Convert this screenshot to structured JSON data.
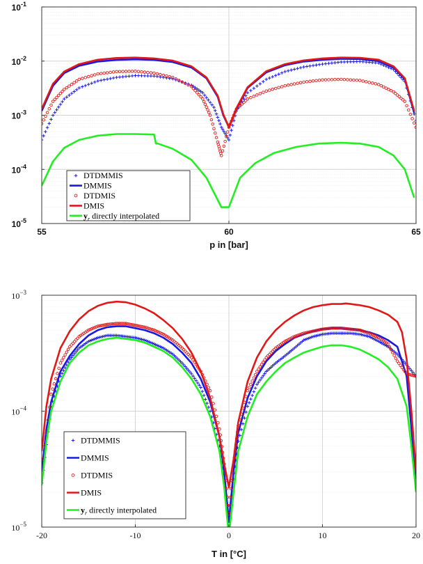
{
  "chart_data": [
    {
      "type": "line",
      "xlabel": "p in [bar]",
      "ylabel": "",
      "xlim": [
        55,
        65
      ],
      "ylim": [
        1e-05,
        0.1
      ],
      "yscale": "log",
      "grid": true,
      "legend_position": "bottom-left",
      "x_ticks": [
        "55",
        "60",
        "65"
      ],
      "y_tick_labels": [
        {
          "base": "10",
          "exp": "-5"
        },
        {
          "base": "10",
          "exp": "-4"
        },
        {
          "base": "10",
          "exp": "-3"
        },
        {
          "base": "10",
          "exp": "-2"
        },
        {
          "base": "10",
          "exp": "-1"
        }
      ],
      "series": [
        {
          "name": "DTDMMIS",
          "marker": "plus",
          "color": "#1a1adc",
          "x": [
            55.0,
            55.3,
            55.6,
            56.0,
            56.5,
            57.0,
            57.5,
            58.0,
            58.5,
            59.0,
            59.3,
            59.6,
            59.8,
            60.0,
            60.2,
            60.5,
            61.0,
            61.5,
            62.0,
            62.5,
            63.0,
            63.5,
            64.0,
            64.4,
            64.7,
            65.0
          ],
          "y": [
            0.00035,
            0.001,
            0.002,
            0.0032,
            0.0043,
            0.005,
            0.0054,
            0.0053,
            0.0047,
            0.0036,
            0.0026,
            0.0014,
            0.0006,
            0.00035,
            0.0012,
            0.0026,
            0.0046,
            0.0064,
            0.0078,
            0.0088,
            0.0096,
            0.0098,
            0.0092,
            0.007,
            0.0042,
            0.0008
          ]
        },
        {
          "name": "DMMIS",
          "marker": "line",
          "color": "#1a1adc",
          "x": [
            55.0,
            55.3,
            55.6,
            56.0,
            56.5,
            57.0,
            57.5,
            58.0,
            58.5,
            59.0,
            59.4,
            59.7,
            59.85,
            60.0,
            60.2,
            60.5,
            61.0,
            61.5,
            62.0,
            62.5,
            63.0,
            63.5,
            64.0,
            64.4,
            64.7,
            64.95
          ],
          "y": [
            0.0012,
            0.0035,
            0.006,
            0.0082,
            0.0098,
            0.0105,
            0.0108,
            0.0105,
            0.0096,
            0.0076,
            0.0048,
            0.0022,
            0.001,
            0.0006,
            0.0013,
            0.0032,
            0.0062,
            0.0084,
            0.0098,
            0.0106,
            0.011,
            0.0109,
            0.01,
            0.0076,
            0.0046,
            0.0011
          ]
        },
        {
          "name": "DTDMIS",
          "marker": "circle",
          "color": "#e01818",
          "x": [
            55.0,
            55.3,
            55.6,
            56.0,
            56.5,
            57.0,
            57.5,
            58.0,
            58.5,
            59.0,
            59.3,
            59.5,
            59.7,
            59.8,
            60.0,
            60.2,
            60.5,
            61.0,
            61.5,
            62.0,
            62.5,
            63.0,
            63.5,
            64.0,
            64.4,
            64.7,
            65.0
          ],
          "y": [
            0.0007,
            0.0018,
            0.003,
            0.0046,
            0.0058,
            0.0064,
            0.0065,
            0.006,
            0.005,
            0.0034,
            0.002,
            0.001,
            0.00032,
            0.00018,
            0.0006,
            0.0013,
            0.002,
            0.0028,
            0.0035,
            0.0041,
            0.0045,
            0.0046,
            0.0044,
            0.0037,
            0.0027,
            0.0018,
            0.0006
          ]
        },
        {
          "name": "DMIS",
          "marker": "line",
          "color": "#e01818",
          "x": [
            55.0,
            55.3,
            55.6,
            56.0,
            56.5,
            57.0,
            57.5,
            58.0,
            58.5,
            59.0,
            59.4,
            59.7,
            59.85,
            60.0,
            60.2,
            60.5,
            61.0,
            61.5,
            62.0,
            62.5,
            63.0,
            63.5,
            64.0,
            64.4,
            64.7,
            64.95
          ],
          "y": [
            0.0013,
            0.0038,
            0.0064,
            0.0088,
            0.0106,
            0.0114,
            0.0116,
            0.0112,
            0.0102,
            0.008,
            0.005,
            0.0023,
            0.00105,
            0.0006,
            0.00135,
            0.0033,
            0.0065,
            0.0088,
            0.0103,
            0.0112,
            0.0116,
            0.0115,
            0.0106,
            0.008,
            0.0048,
            0.0012
          ]
        },
        {
          "name": "y_r directly interpolated",
          "marker": "line",
          "color": "#22ee22",
          "x": [
            55.0,
            55.3,
            55.6,
            56.0,
            56.5,
            57.0,
            57.5,
            58.0,
            58.05,
            58.1,
            58.5,
            59.0,
            59.4,
            59.8,
            60.0,
            60.3,
            60.7,
            61.2,
            61.8,
            62.4,
            63.0,
            63.5,
            64.0,
            64.4,
            64.7,
            64.95
          ],
          "y": [
            5e-05,
            0.00014,
            0.00025,
            0.00035,
            0.00042,
            0.00045,
            0.00045,
            0.00044,
            0.0003,
            0.0003,
            0.00024,
            0.00015,
            7e-05,
            2e-05,
            2e-05,
            7e-05,
            0.00013,
            0.0002,
            0.00026,
            0.0003,
            0.00031,
            0.0003,
            0.00026,
            0.00018,
            0.0001,
            3e-05
          ]
        }
      ],
      "legend": [
        {
          "label": "DTDMMIS"
        },
        {
          "label": "DMMIS"
        },
        {
          "label": "DTDMIS"
        },
        {
          "label": "DMIS"
        },
        {
          "sym": "y",
          "sub": "r",
          "rest": " directly interpolated"
        }
      ]
    },
    {
      "type": "line",
      "xlabel": "T in [°C]",
      "ylabel": "",
      "xlim": [
        -20,
        20
      ],
      "ylim": [
        1e-05,
        0.001
      ],
      "yscale": "log",
      "grid": true,
      "legend_position": "bottom-left",
      "x_ticks": [
        "-20",
        "-10",
        "0",
        "10",
        "20"
      ],
      "y_tick_labels": [
        {
          "base": "10",
          "exp": "−5"
        },
        {
          "base": "10",
          "exp": "−4"
        },
        {
          "base": "10",
          "exp": "−3"
        }
      ],
      "series": [
        {
          "name": "DTDMMIS",
          "marker": "plus",
          "color": "#1a1adc",
          "x": [
            -20,
            -19,
            -18,
            -17,
            -16,
            -15,
            -14,
            -13,
            -12,
            -11,
            -10,
            -9,
            -8,
            -7,
            -6,
            -5,
            -4,
            -3,
            -2,
            -1,
            -0.5,
            0,
            0.5,
            1,
            2,
            3,
            4,
            5,
            6,
            7,
            8,
            9,
            10,
            11,
            12,
            13,
            14,
            15,
            16,
            17,
            18,
            19,
            20
          ],
          "y": [
            2.4e-05,
            0.00011,
            0.0002,
            0.00028,
            0.00035,
            0.0004,
            0.00043,
            0.00045,
            0.00045,
            0.00044,
            0.00043,
            0.00041,
            0.00038,
            0.00035,
            0.00031,
            0.00026,
            0.00021,
            0.00016,
            0.0001,
            5e-05,
            2.6e-05,
            1e-05,
            2.6e-05,
            5.5e-05,
            0.00011,
            0.00017,
            0.00022,
            0.00026,
            0.0003,
            0.00035,
            0.00041,
            0.00044,
            0.00046,
            0.00047,
            0.00047,
            0.00047,
            0.00046,
            0.00044,
            0.0004,
            0.00036,
            0.00031,
            0.00025,
            0.0002
          ]
        },
        {
          "name": "DMMIS",
          "marker": "line",
          "color": "#1a1adc",
          "x": [
            -20,
            -19.5,
            -19,
            -18,
            -17,
            -16,
            -15,
            -14,
            -13,
            -12,
            -11,
            -10,
            -9,
            -8,
            -7,
            -6,
            -5,
            -4,
            -3,
            -2,
            -1,
            -0.5,
            0,
            0.5,
            1,
            2,
            3,
            4,
            5,
            6,
            7,
            8,
            9,
            10,
            11,
            12,
            13,
            14,
            15,
            16,
            17,
            18,
            19,
            20
          ],
          "y": [
            3e-05,
            7e-05,
            0.00012,
            0.00022,
            0.0003,
            0.00038,
            0.00045,
            0.0005,
            0.00053,
            0.00054,
            0.00054,
            0.00052,
            0.0005,
            0.00047,
            0.00043,
            0.00038,
            0.00032,
            0.00026,
            0.00019,
            0.00012,
            6e-05,
            3e-05,
            1.1e-05,
            3e-05,
            6.5e-05,
            0.00013,
            0.0002,
            0.00027,
            0.00033,
            0.00038,
            0.00043,
            0.00046,
            0.00049,
            0.00051,
            0.00052,
            0.00052,
            0.00051,
            0.0005,
            0.00048,
            0.00045,
            0.00041,
            0.00036,
            0.0002,
            2.6e-05
          ]
        },
        {
          "name": "DTDMIS",
          "marker": "circle",
          "color": "#e01818",
          "x": [
            -20,
            -19,
            -18,
            -17,
            -16,
            -15,
            -14,
            -13,
            -12,
            -11,
            -10,
            -9,
            -8,
            -7,
            -6,
            -5,
            -4,
            -3,
            -2,
            -1,
            -0.5,
            0,
            0.5,
            1,
            2,
            3,
            4,
            5,
            6,
            7,
            8,
            9,
            10,
            11,
            12,
            13,
            14,
            15,
            16,
            17,
            18,
            19,
            20
          ],
          "y": [
            3e-05,
            0.00014,
            0.00026,
            0.00036,
            0.00044,
            0.0005,
            0.00054,
            0.00056,
            0.00057,
            0.00057,
            0.00055,
            0.00053,
            0.0005,
            0.00046,
            0.00041,
            0.00035,
            0.00029,
            0.00022,
            0.00015,
            7e-05,
            3.5e-05,
            1.3e-05,
            3.5e-05,
            7.5e-05,
            0.00015,
            0.00022,
            0.00029,
            0.00035,
            0.0004,
            0.00044,
            0.00047,
            0.00049,
            0.00051,
            0.00052,
            0.00052,
            0.00051,
            0.0005,
            0.00047,
            0.00043,
            0.00038,
            0.00027,
            0.00021,
            0.0002
          ]
        },
        {
          "name": "DMIS",
          "marker": "line",
          "color": "#e01818",
          "x": [
            -20,
            -19.5,
            -19,
            -18,
            -17,
            -16,
            -15,
            -14,
            -13,
            -12,
            -11,
            -10,
            -9,
            -8,
            -7,
            -6,
            -5,
            -4,
            -3,
            -2,
            -1,
            -0.5,
            0,
            0.5,
            1,
            2,
            3,
            4,
            5,
            6,
            7,
            8,
            9,
            10,
            11,
            12,
            12.5,
            13,
            14,
            15,
            16,
            17,
            18,
            18.5,
            19,
            19.5,
            20
          ],
          "y": [
            4.5e-05,
            0.00011,
            0.00019,
            0.00035,
            0.00049,
            0.00062,
            0.00073,
            0.00081,
            0.00086,
            0.00088,
            0.00087,
            0.00083,
            0.00077,
            0.0007,
            0.00061,
            0.00052,
            0.00042,
            0.00032,
            0.00022,
            0.00013,
            6e-05,
            3.5e-05,
            2.2e-05,
            3.8e-05,
            8e-05,
            0.00018,
            0.00029,
            0.0004,
            0.0005,
            0.00059,
            0.00067,
            0.00074,
            0.00079,
            0.00082,
            0.00084,
            0.00084,
            0.00085,
            0.00084,
            0.00082,
            0.00079,
            0.00074,
            0.00068,
            0.00059,
            0.00048,
            0.00028,
            0.0001,
            3e-05
          ]
        },
        {
          "name": "y_r directly interpolated",
          "marker": "line",
          "color": "#22ee22",
          "x": [
            -20,
            -19.5,
            -19,
            -18,
            -17,
            -16,
            -15,
            -14,
            -13,
            -12,
            -11,
            -10,
            -9,
            -8,
            -7,
            -6,
            -5,
            -4,
            -3,
            -2,
            -1,
            -0.5,
            -0.1,
            0.1,
            0.5,
            1,
            2,
            3,
            4,
            5,
            6,
            7,
            8,
            9,
            10,
            11,
            12,
            13,
            14,
            15,
            16,
            17,
            18,
            19,
            19.5,
            20
          ],
          "y": [
            2.3e-05,
            5.5e-05,
            0.0001,
            0.00018,
            0.00026,
            0.00032,
            0.00037,
            0.0004,
            0.00042,
            0.00043,
            0.00042,
            0.00041,
            0.00039,
            0.00036,
            0.00033,
            0.00029,
            0.00024,
            0.00019,
            0.00014,
            9e-05,
            4.5e-05,
            2.2e-05,
            1e-05,
            1e-05,
            2e-05,
            4.5e-05,
            9e-05,
            0.00014,
            0.00018,
            0.00022,
            0.00026,
            0.00029,
            0.00032,
            0.00034,
            0.00036,
            0.00037,
            0.00037,
            0.00036,
            0.00034,
            0.00031,
            0.00028,
            0.00024,
            0.00019,
            0.00011,
            5e-05,
            2e-05
          ]
        }
      ],
      "legend": [
        {
          "label": "DTDMMIS"
        },
        {
          "label": "DMMIS"
        },
        {
          "label": "DTDMIS"
        },
        {
          "label": "DMIS"
        },
        {
          "sym": "y",
          "sub": "r",
          "rest": " directly interpolated"
        }
      ]
    }
  ]
}
